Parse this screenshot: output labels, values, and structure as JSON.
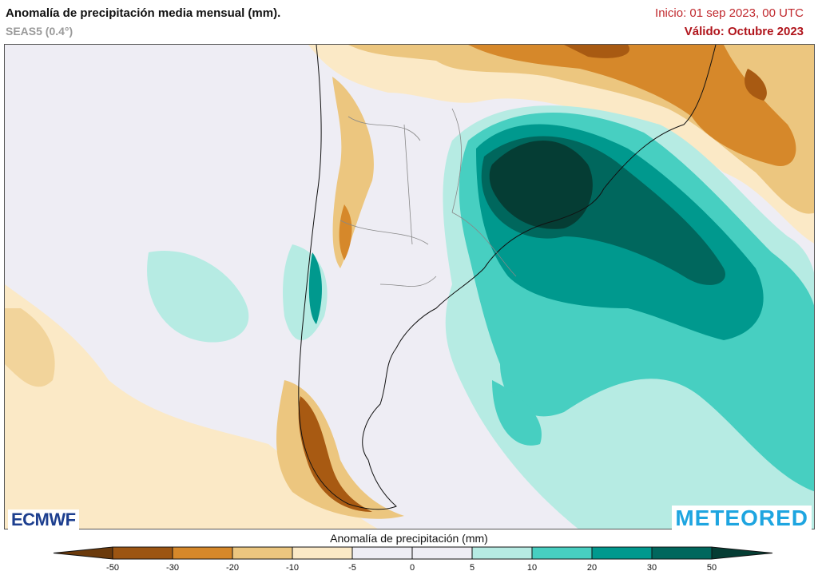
{
  "header": {
    "title": "Anomalía de precipitación media mensual (mm).",
    "subtitle": "SEAS5 (0.4°)",
    "init": "Inicio: 01 sep 2023, 00 UTC",
    "valid": "Válido: Octubre 2023"
  },
  "logos": {
    "left": "ECMWF",
    "right": "METEORED"
  },
  "colorbar": {
    "title": "Anomalía de precipitación (mm)",
    "ticks": [
      "-50",
      "-30",
      "-20",
      "-10",
      "-5",
      "0",
      "5",
      "10",
      "20",
      "30",
      "50"
    ],
    "colors": [
      "#6b3a0c",
      "#9c5512",
      "#d6882a",
      "#ecc67f",
      "#fbe9c6",
      "#eeedf4",
      "#eeedf4",
      "#b6ebe3",
      "#47cfc1",
      "#00998e",
      "#00675d",
      "#053d34"
    ]
  }
}
